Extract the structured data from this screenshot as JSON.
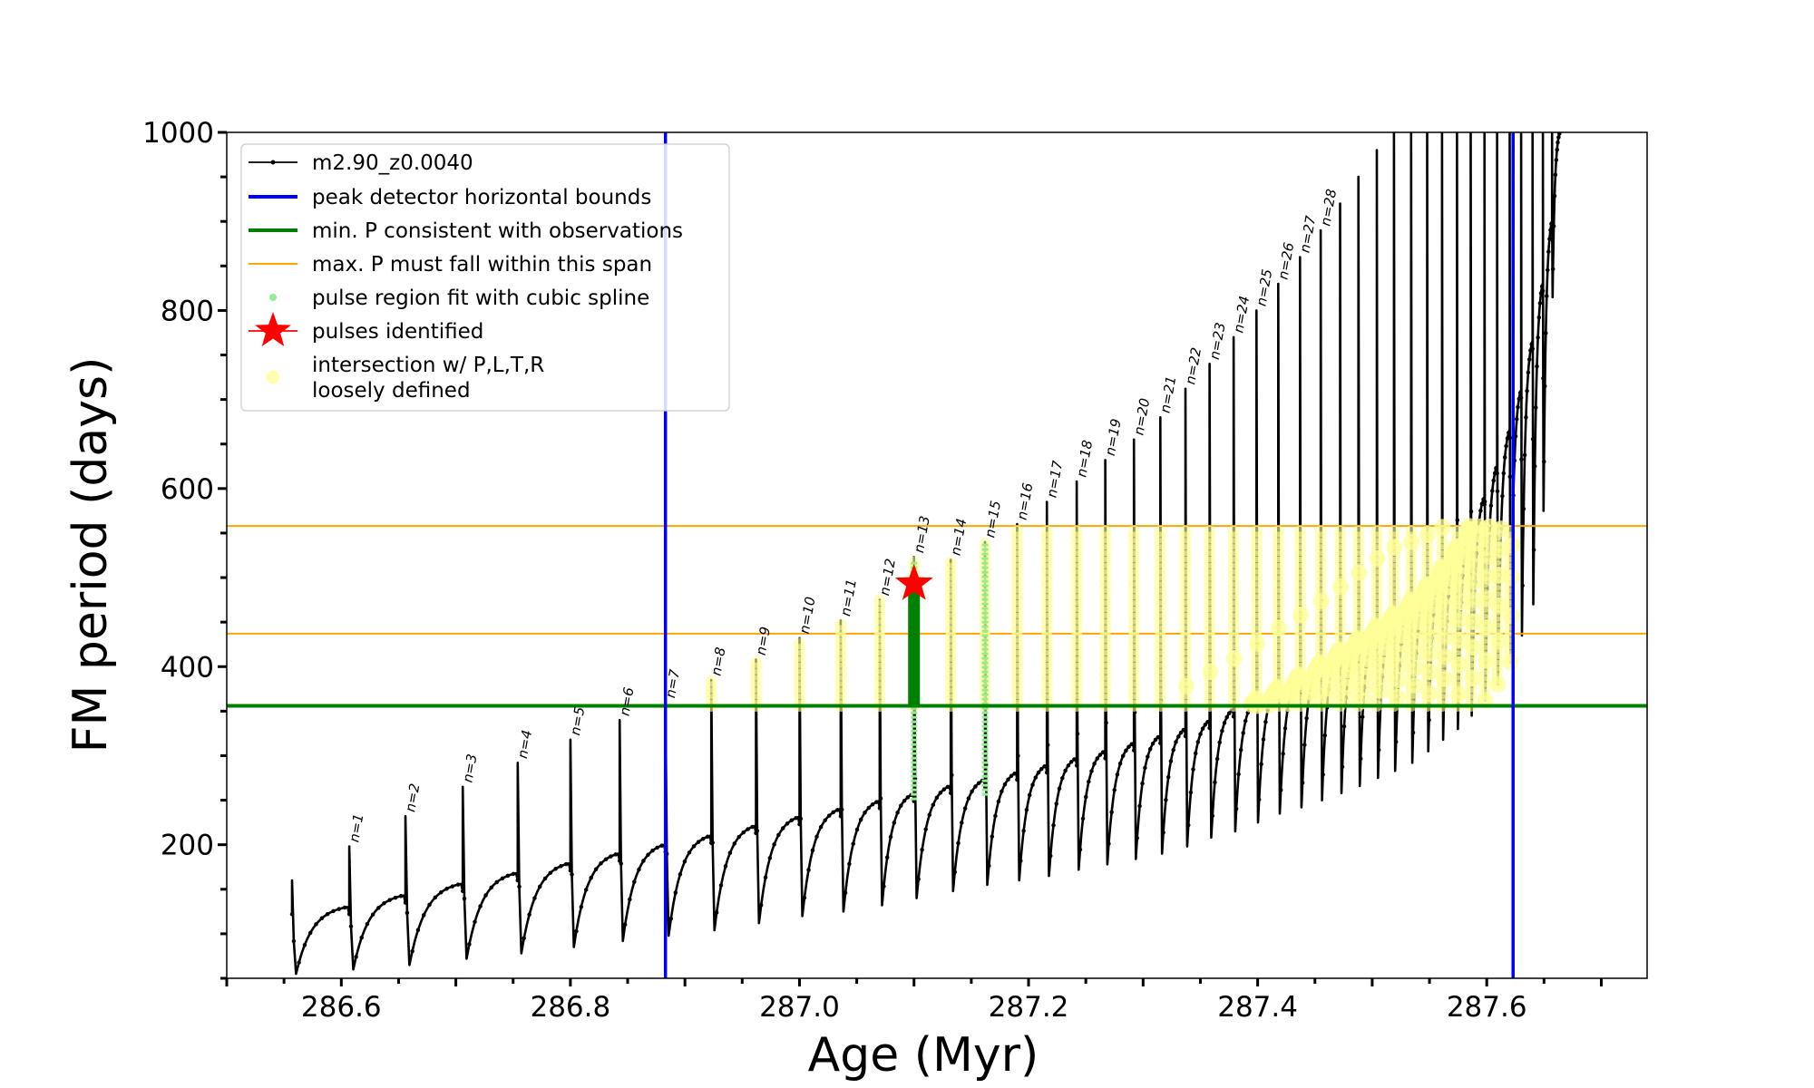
{
  "chart_data": {
    "type": "line",
    "xlabel": "Age (Myr)",
    "ylabel": "FM period (days)",
    "xlim": [
      286.5,
      287.74
    ],
    "ylim": [
      50,
      1000
    ],
    "x_ticks": [
      286.6,
      286.8,
      287.0,
      287.2,
      287.4,
      287.6
    ],
    "x_tick_labels": [
      "286.6",
      "286.8",
      "287.0",
      "287.2",
      "287.4",
      "287.6"
    ],
    "y_ticks": [
      200,
      400,
      600,
      800,
      1000
    ],
    "y_tick_labels": [
      "200",
      "400",
      "600",
      "800",
      "1000"
    ],
    "grid": false,
    "legend_position": "top-left",
    "legend": [
      {
        "label": "m2.90_z0.0040",
        "color": "#000000",
        "marker": "line-dot"
      },
      {
        "label": "peak detector horizontal bounds",
        "color": "#0000ff",
        "marker": "line"
      },
      {
        "label": "min. P consistent with observations",
        "color": "#008000",
        "marker": "line"
      },
      {
        "label": "max. P must fall within this span",
        "color": "#ffa500",
        "marker": "line"
      },
      {
        "label": "pulse region fit with cubic spline",
        "color": "#90ee90",
        "marker": "dot"
      },
      {
        "label": "pulses identified",
        "color": "#ff0000",
        "marker": "star"
      },
      {
        "label": "intersection w/ P,L,T,R",
        "label_line2": "loosely defined",
        "color": "#ffff99",
        "marker": "circle"
      }
    ],
    "vertical_lines": {
      "color": "#0000ff",
      "x": [
        286.883,
        287.623
      ]
    },
    "min_period_line": {
      "color": "#008000",
      "y": 356
    },
    "max_period_span": {
      "color": "#ffa500",
      "y": [
        437,
        558
      ]
    },
    "identified_pulse": {
      "n": 13,
      "x": 287.1,
      "y": 493,
      "color": "#ff0000"
    },
    "series": [
      {
        "name": "m2.90_z0.0040",
        "color": "#000000",
        "pulses": [
          {
            "x": 286.557,
            "base": 130,
            "peak": 160,
            "trough": 55
          },
          {
            "x": 286.607,
            "base": 143,
            "peak": 198,
            "trough": 60,
            "label": "n=1"
          },
          {
            "x": 286.656,
            "base": 156,
            "peak": 232,
            "trough": 65,
            "label": "n=2"
          },
          {
            "x": 286.706,
            "base": 168,
            "peak": 265,
            "trough": 72,
            "label": "n=3"
          },
          {
            "x": 286.754,
            "base": 179,
            "peak": 292,
            "trough": 78,
            "label": "n=4"
          },
          {
            "x": 286.8,
            "base": 190,
            "peak": 318,
            "trough": 85,
            "label": "n=5"
          },
          {
            "x": 286.843,
            "base": 200,
            "peak": 340,
            "trough": 92,
            "label": "n=6"
          },
          {
            "x": 286.883,
            "base": 210,
            "peak": 360,
            "trough": 98,
            "label": "n=7"
          },
          {
            "x": 286.923,
            "base": 221,
            "peak": 385,
            "trough": 104,
            "label": "n=8"
          },
          {
            "x": 286.962,
            "base": 231,
            "peak": 408,
            "trough": 112,
            "label": "n=9"
          },
          {
            "x": 287.0,
            "base": 240,
            "peak": 432,
            "trough": 120,
            "label": "n=10"
          },
          {
            "x": 287.036,
            "base": 249,
            "peak": 452,
            "trough": 125,
            "label": "n=11"
          },
          {
            "x": 287.07,
            "base": 257,
            "peak": 475,
            "trough": 132,
            "label": "n=12"
          },
          {
            "x": 287.1,
            "base": 266,
            "peak": 523,
            "trough": 140,
            "label": "n=13"
          },
          {
            "x": 287.132,
            "base": 273,
            "peak": 520,
            "trough": 148,
            "label": "n=14"
          },
          {
            "x": 287.162,
            "base": 281,
            "peak": 540,
            "trough": 155,
            "label": "n=15"
          },
          {
            "x": 287.19,
            "base": 289,
            "peak": 560,
            "trough": 160,
            "label": "n=16"
          },
          {
            "x": 287.216,
            "base": 297,
            "peak": 585,
            "trough": 165,
            "label": "n=17"
          },
          {
            "x": 287.242,
            "base": 305,
            "peak": 608,
            "trough": 172,
            "label": "n=18"
          },
          {
            "x": 287.267,
            "base": 314,
            "peak": 632,
            "trough": 178,
            "label": "n=19"
          },
          {
            "x": 287.292,
            "base": 322,
            "peak": 655,
            "trough": 184,
            "label": "n=20"
          },
          {
            "x": 287.315,
            "base": 330,
            "peak": 680,
            "trough": 190,
            "label": "n=21"
          },
          {
            "x": 287.337,
            "base": 339,
            "peak": 712,
            "trough": 198,
            "label": "n=22"
          },
          {
            "x": 287.358,
            "base": 352,
            "peak": 740,
            "trough": 208,
            "label": "n=23"
          },
          {
            "x": 287.379,
            "base": 364,
            "peak": 770,
            "trough": 215,
            "label": "n=24"
          },
          {
            "x": 287.399,
            "base": 377,
            "peak": 800,
            "trough": 225,
            "label": "n=25"
          },
          {
            "x": 287.418,
            "base": 391,
            "peak": 830,
            "trough": 235,
            "label": "n=26"
          },
          {
            "x": 287.437,
            "base": 405,
            "peak": 860,
            "trough": 242,
            "label": "n=27"
          },
          {
            "x": 287.455,
            "base": 419,
            "peak": 890,
            "trough": 250,
            "label": "n=28"
          },
          {
            "x": 287.472,
            "base": 432,
            "peak": 920,
            "trough": 258
          },
          {
            "x": 287.488,
            "base": 446,
            "peak": 950,
            "trough": 266
          },
          {
            "x": 287.504,
            "base": 460,
            "peak": 980,
            "trough": 275
          },
          {
            "x": 287.519,
            "base": 475,
            "peak": 1000,
            "trough": 283
          },
          {
            "x": 287.534,
            "base": 492,
            "peak": 1000,
            "trough": 292
          },
          {
            "x": 287.548,
            "base": 512,
            "peak": 1000,
            "trough": 305
          },
          {
            "x": 287.561,
            "base": 535,
            "peak": 1000,
            "trough": 318
          },
          {
            "x": 287.574,
            "base": 562,
            "peak": 1000,
            "trough": 330
          },
          {
            "x": 287.586,
            "base": 590,
            "peak": 1000,
            "trough": 345
          },
          {
            "x": 287.598,
            "base": 625,
            "peak": 1000,
            "trough": 362
          },
          {
            "x": 287.609,
            "base": 665,
            "peak": 1000,
            "trough": 380
          },
          {
            "x": 287.62,
            "base": 710,
            "peak": 1000,
            "trough": 405
          },
          {
            "x": 287.63,
            "base": 765,
            "peak": 1000,
            "trough": 435
          },
          {
            "x": 287.64,
            "base": 830,
            "peak": 1000,
            "trough": 470
          },
          {
            "x": 287.649,
            "base": 900,
            "peak": 1000,
            "trough": 575
          },
          {
            "x": 287.657,
            "base": 1000,
            "peak": 1000,
            "trough": 815
          }
        ]
      },
      {
        "name": "pulse region fit with cubic spline",
        "color": "#90ee90",
        "segments": [
          {
            "x": 287.1,
            "y": [
              250,
              520
            ]
          },
          {
            "x": 287.162,
            "y": [
              255,
              540
            ]
          }
        ]
      }
    ]
  }
}
